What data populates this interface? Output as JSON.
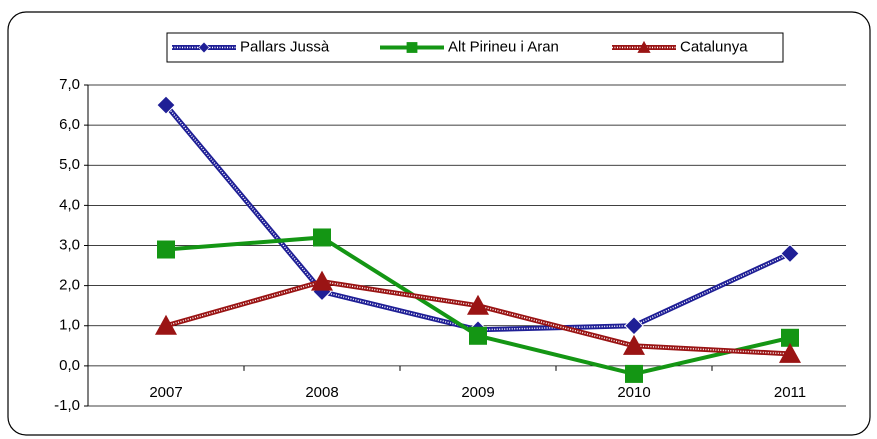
{
  "chart_data": {
    "type": "line",
    "categories": [
      "2007",
      "2008",
      "2009",
      "2010",
      "2011"
    ],
    "series": [
      {
        "name": "Pallars Jussà",
        "color": "#1f1f96",
        "marker": "diamond",
        "values": [
          6.5,
          1.85,
          0.9,
          1.0,
          2.8
        ]
      },
      {
        "name": "Alt Pirineu i Aran",
        "color": "#149614",
        "marker": "square",
        "values": [
          2.9,
          3.2,
          0.75,
          -0.2,
          0.7
        ]
      },
      {
        "name": "Catalunya",
        "color": "#9a1414",
        "marker": "triangle",
        "values": [
          1.0,
          2.1,
          1.5,
          0.5,
          0.3
        ]
      }
    ],
    "ylim": [
      -1,
      7
    ],
    "yticks": [
      {
        "value": -1,
        "label": "-1,0"
      },
      {
        "value": 0,
        "label": "0,0"
      },
      {
        "value": 1,
        "label": "1,0"
      },
      {
        "value": 2,
        "label": "2,0"
      },
      {
        "value": 3,
        "label": "3,0"
      },
      {
        "value": 4,
        "label": "4,0"
      },
      {
        "value": 5,
        "label": "5,0"
      },
      {
        "value": 6,
        "label": "6,0"
      },
      {
        "value": 7,
        "label": "7,0"
      }
    ],
    "grid": true,
    "legend": "top"
  }
}
